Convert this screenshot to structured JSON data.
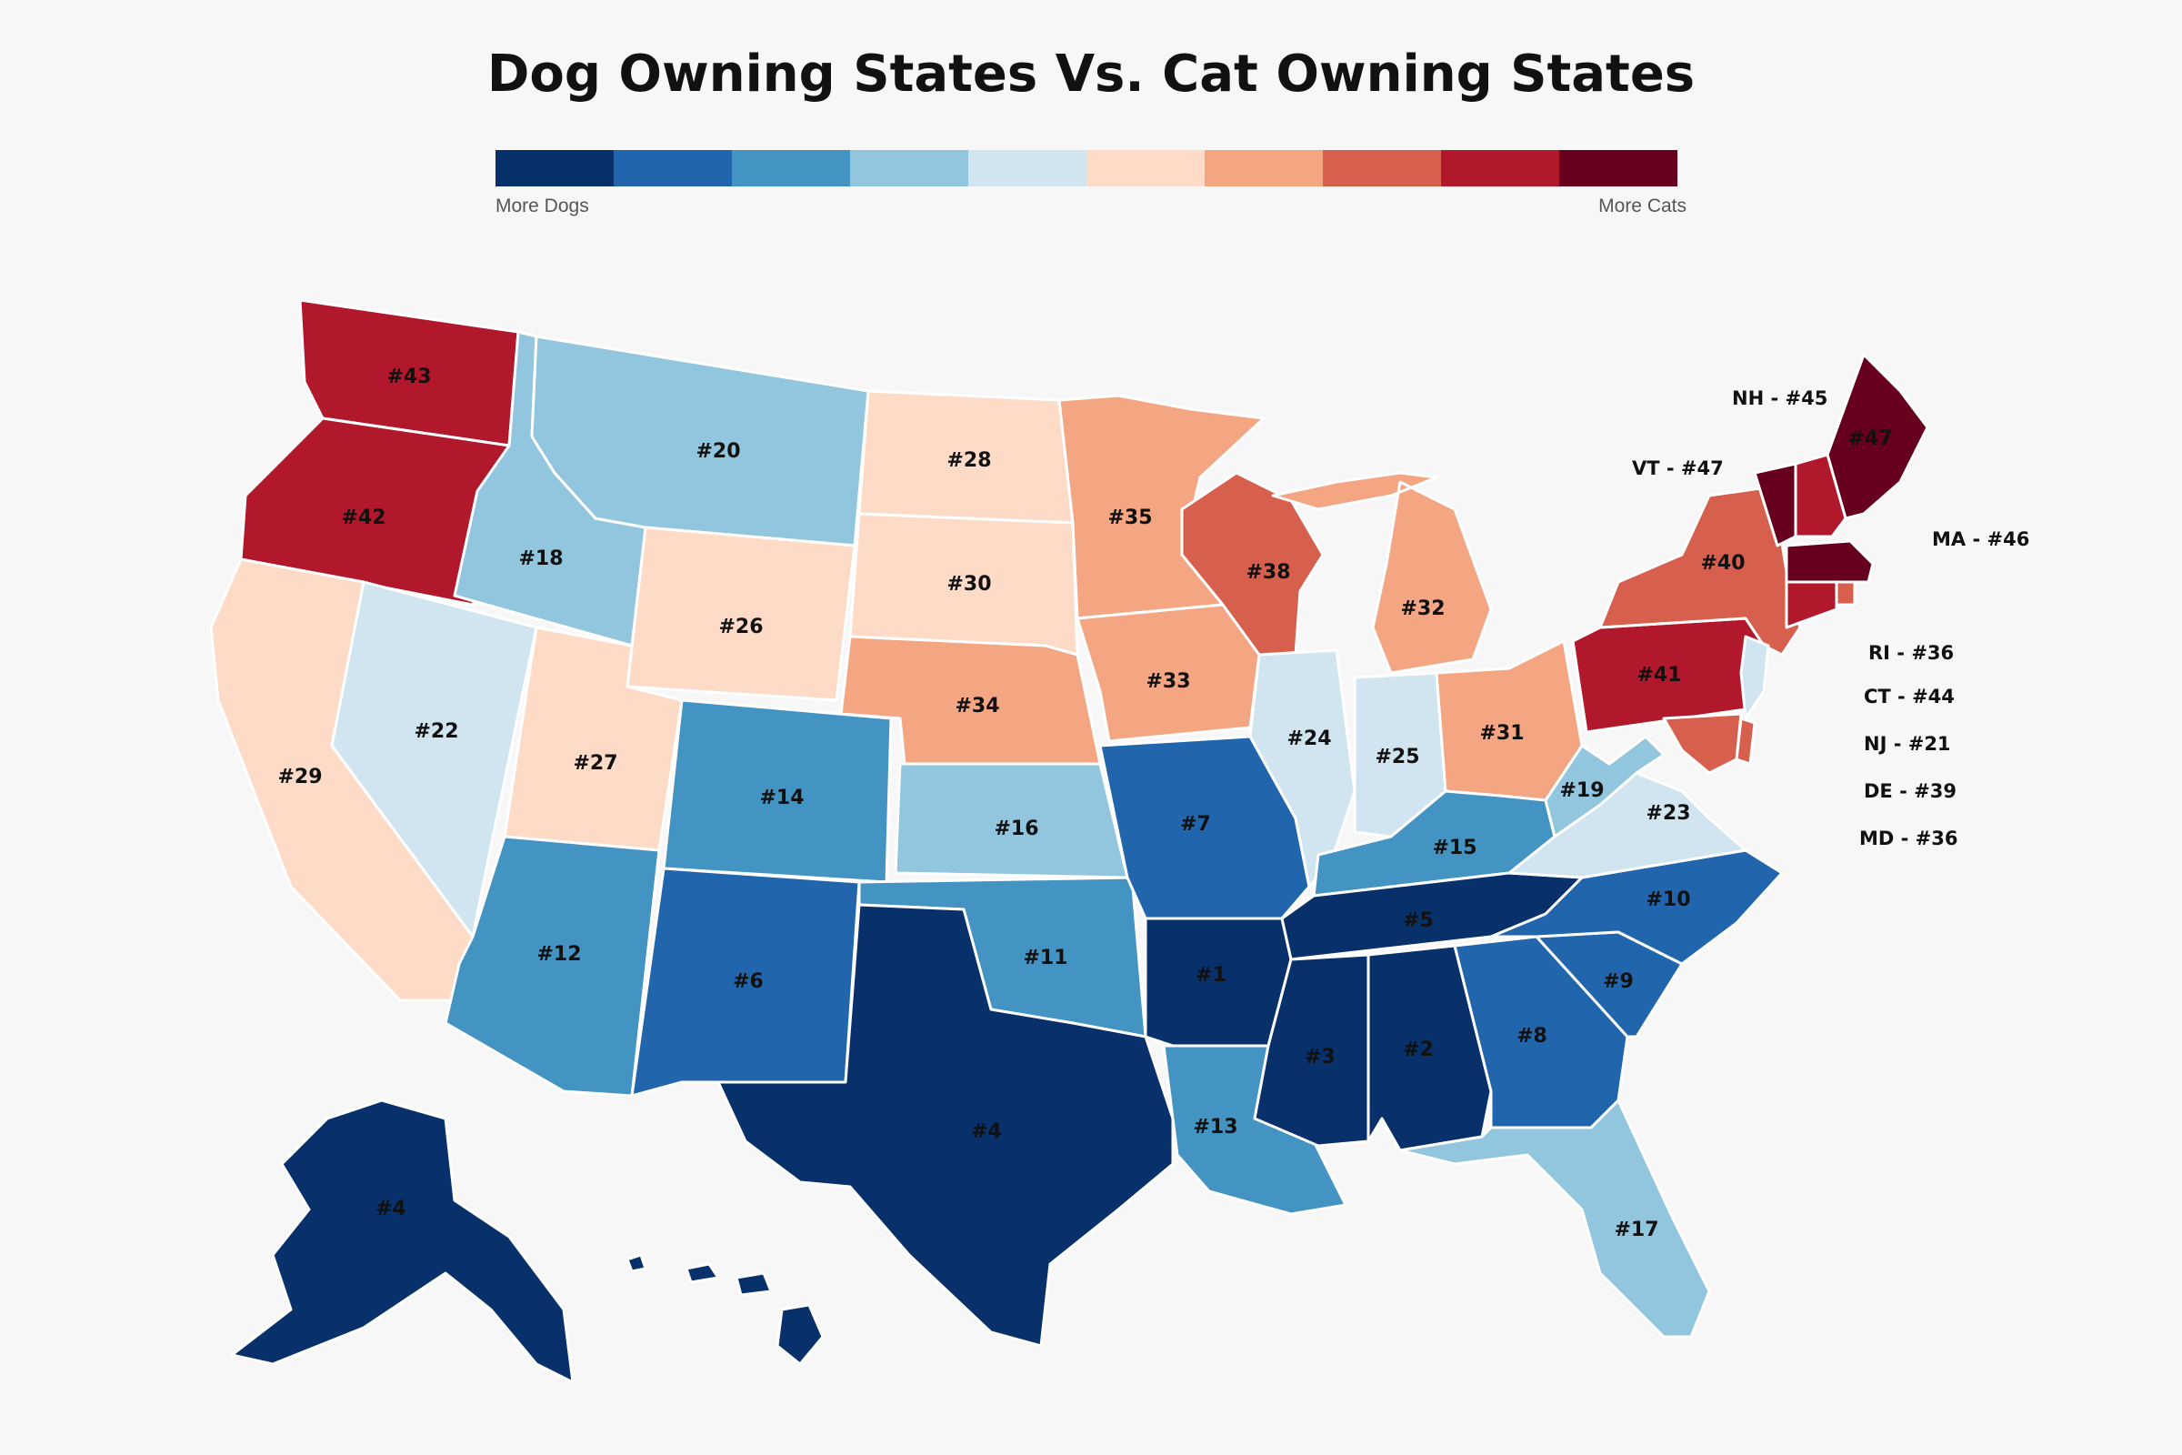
{
  "title": "Dog Owning States Vs. Cat Owning States",
  "legend": {
    "left_label": "More Dogs",
    "right_label": "More Cats",
    "colors": [
      "#08306b",
      "#2166ac",
      "#4393c3",
      "#92c5de",
      "#d1e5f0",
      "#fddbc7",
      "#f4a582",
      "#d6604d",
      "#b2182b",
      "#67001f"
    ]
  },
  "chart_data": {
    "type": "choropleth",
    "scale": "rank 1 = most dog-owning, 47 = most cat-owning",
    "states": [
      {
        "id": "WA",
        "rank": "#43",
        "color": "#b2182b"
      },
      {
        "id": "OR",
        "rank": "#42",
        "color": "#b2182b"
      },
      {
        "id": "CA",
        "rank": "#29",
        "color": "#fddbc7"
      },
      {
        "id": "ID",
        "rank": "#18",
        "color": "#92c5de"
      },
      {
        "id": "NV",
        "rank": "#22",
        "color": "#d1e5f0"
      },
      {
        "id": "MT",
        "rank": "#20",
        "color": "#92c5de"
      },
      {
        "id": "WY",
        "rank": "#26",
        "color": "#fddbc7"
      },
      {
        "id": "UT",
        "rank": "#27",
        "color": "#fddbc7"
      },
      {
        "id": "AZ",
        "rank": "#12",
        "color": "#4393c3"
      },
      {
        "id": "CO",
        "rank": "#14",
        "color": "#4393c3"
      },
      {
        "id": "NM",
        "rank": "#6",
        "color": "#2166ac"
      },
      {
        "id": "ND",
        "rank": "#28",
        "color": "#fddbc7"
      },
      {
        "id": "SD",
        "rank": "#30",
        "color": "#fddbc7"
      },
      {
        "id": "NE",
        "rank": "#34",
        "color": "#f4a582"
      },
      {
        "id": "KS",
        "rank": "#16",
        "color": "#92c5de"
      },
      {
        "id": "OK",
        "rank": "#11",
        "color": "#4393c3"
      },
      {
        "id": "TX",
        "rank": "#4",
        "color": "#08306b"
      },
      {
        "id": "MN",
        "rank": "#35",
        "color": "#f4a582"
      },
      {
        "id": "IA",
        "rank": "#33",
        "color": "#f4a582"
      },
      {
        "id": "MO",
        "rank": "#7",
        "color": "#2166ac"
      },
      {
        "id": "AR",
        "rank": "#1",
        "color": "#08306b"
      },
      {
        "id": "LA",
        "rank": "#13",
        "color": "#4393c3"
      },
      {
        "id": "WI",
        "rank": "#38",
        "color": "#d6604d"
      },
      {
        "id": "IL",
        "rank": "#24",
        "color": "#d1e5f0"
      },
      {
        "id": "MI",
        "rank": "#32",
        "color": "#f4a582"
      },
      {
        "id": "IN",
        "rank": "#25",
        "color": "#d1e5f0"
      },
      {
        "id": "OH",
        "rank": "#31",
        "color": "#f4a582"
      },
      {
        "id": "KY",
        "rank": "#15",
        "color": "#4393c3"
      },
      {
        "id": "TN",
        "rank": "#5",
        "color": "#08306b"
      },
      {
        "id": "MS",
        "rank": "#3",
        "color": "#08306b"
      },
      {
        "id": "AL",
        "rank": "#2",
        "color": "#08306b"
      },
      {
        "id": "GA",
        "rank": "#8",
        "color": "#2166ac"
      },
      {
        "id": "FL",
        "rank": "#17",
        "color": "#92c5de"
      },
      {
        "id": "SC",
        "rank": "#9",
        "color": "#2166ac"
      },
      {
        "id": "NC",
        "rank": "#10",
        "color": "#2166ac"
      },
      {
        "id": "VA",
        "rank": "#23",
        "color": "#d1e5f0"
      },
      {
        "id": "WV",
        "rank": "#19",
        "color": "#92c5de"
      },
      {
        "id": "PA",
        "rank": "#41",
        "color": "#b2182b"
      },
      {
        "id": "NY",
        "rank": "#40",
        "color": "#d6604d"
      },
      {
        "id": "ME",
        "rank": "#47",
        "color": "#67001f"
      },
      {
        "id": "AK",
        "rank": "#4",
        "color": "#08306b"
      },
      {
        "id": "HI",
        "rank": "",
        "color": "#08306b"
      },
      {
        "id": "VT",
        "rank": "",
        "color": "#67001f"
      },
      {
        "id": "NH",
        "rank": "",
        "color": "#b2182b"
      },
      {
        "id": "MA",
        "rank": "",
        "color": "#67001f"
      },
      {
        "id": "RI",
        "rank": "",
        "color": "#d6604d"
      },
      {
        "id": "CT",
        "rank": "",
        "color": "#b2182b"
      },
      {
        "id": "NJ",
        "rank": "",
        "color": "#d1e5f0"
      },
      {
        "id": "DE",
        "rank": "",
        "color": "#d6604d"
      },
      {
        "id": "MD",
        "rank": "",
        "color": "#d6604d"
      }
    ],
    "callouts": [
      {
        "id": "NH",
        "text": "NH - #45"
      },
      {
        "id": "VT",
        "text": "VT - #47"
      },
      {
        "id": "MA",
        "text": "MA - #46"
      },
      {
        "id": "RI",
        "text": "RI - #36"
      },
      {
        "id": "CT",
        "text": "CT - #44"
      },
      {
        "id": "NJ",
        "text": "NJ - #21"
      },
      {
        "id": "DE",
        "text": "DE - #39"
      },
      {
        "id": "MD",
        "text": "MD - #36"
      }
    ]
  }
}
